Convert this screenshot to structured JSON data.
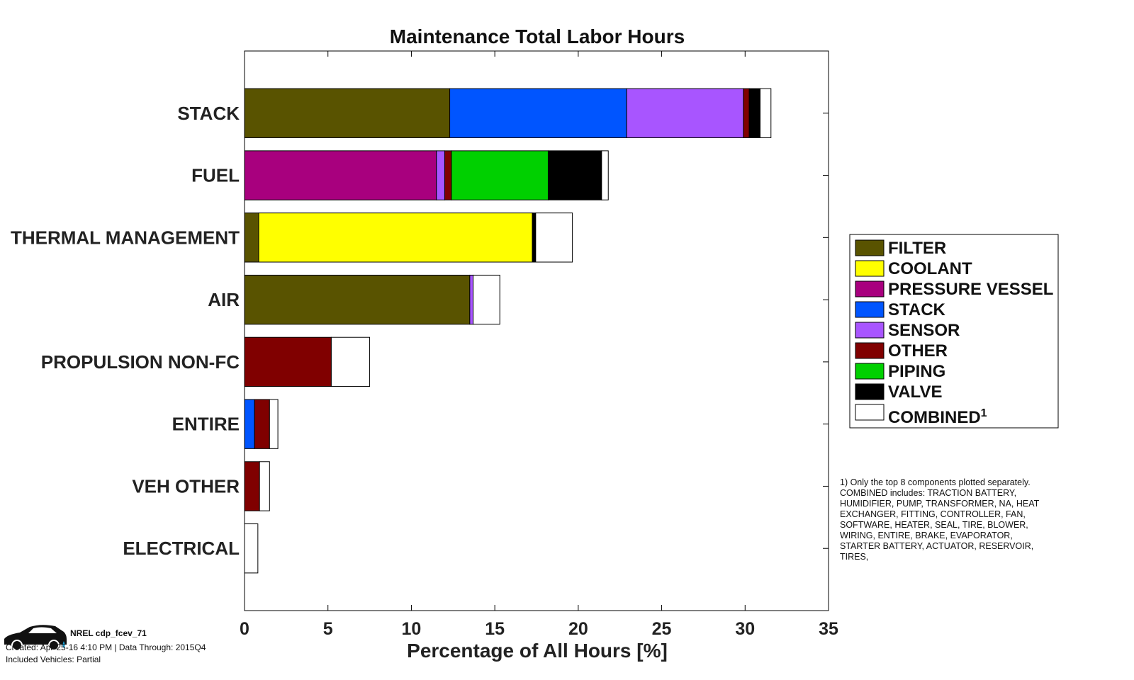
{
  "chart_data": {
    "type": "bar",
    "orientation": "horizontal",
    "stacked": true,
    "title": "Maintenance Total Labor Hours",
    "xlabel": "Percentage of All Hours [%]",
    "ylabel": "",
    "xlim": [
      0,
      35
    ],
    "xticks": [
      0,
      5,
      10,
      15,
      20,
      25,
      30,
      35
    ],
    "grid": false,
    "legend_position": "right",
    "categories": [
      "STACK",
      "FUEL",
      "THERMAL MANAGEMENT",
      "AIR",
      "PROPULSION NON-FC",
      "ENTIRE",
      "VEH OTHER",
      "ELECTRICAL"
    ],
    "series": [
      {
        "name": "FILTER",
        "color": "#595300",
        "values": [
          12.3,
          0,
          0.85,
          13.5,
          0,
          0,
          0,
          0
        ]
      },
      {
        "name": "COOLANT",
        "color": "#ffff00",
        "values": [
          0,
          0,
          16.4,
          0,
          0,
          0,
          0,
          0
        ]
      },
      {
        "name": "PRESSURE VESSEL",
        "color": "#a8007e",
        "values": [
          0,
          11.5,
          0,
          0,
          0,
          0,
          0,
          0
        ]
      },
      {
        "name": "STACK",
        "color": "#0055ff",
        "values": [
          10.6,
          0,
          0,
          0,
          0,
          0.6,
          0,
          0
        ]
      },
      {
        "name": "SENSOR",
        "color": "#a855ff",
        "values": [
          7.0,
          0.5,
          0,
          0.2,
          0,
          0,
          0,
          0
        ]
      },
      {
        "name": "OTHER",
        "color": "#800000",
        "values": [
          0.35,
          0.4,
          0,
          0,
          5.2,
          0.9,
          0.9,
          0
        ]
      },
      {
        "name": "PIPING",
        "color": "#00d000",
        "values": [
          0,
          5.8,
          0,
          0,
          0,
          0,
          0,
          0
        ]
      },
      {
        "name": "VALVE",
        "color": "#000000",
        "values": [
          0.65,
          3.2,
          0.2,
          0,
          0,
          0,
          0,
          0
        ]
      },
      {
        "name": "COMBINED",
        "color": "#ffffff",
        "values": [
          0.65,
          0.4,
          2.2,
          1.6,
          2.3,
          0.5,
          0.6,
          0.8
        ]
      }
    ],
    "legend_note_superscript": "1"
  },
  "footnote": {
    "lines": [
      "1) Only the top 8 components plotted separately.",
      "COMBINED includes: TRACTION BATTERY,",
      "HUMIDIFIER, PUMP, TRANSFORMER, NA, HEAT",
      "EXCHANGER, FITTING, CONTROLLER, FAN,",
      "SOFTWARE, HEATER, SEAL, TIRE, BLOWER,",
      "WIRING, ENTIRE, BRAKE, EVAPORATOR,",
      "STARTER BATTERY, ACTUATOR, RESERVOIR,",
      "TIRES,"
    ]
  },
  "credit": {
    "name": "NREL cdp_fcev_71",
    "line1": "Created: Apr-25-16  4:10 PM | Data Through: 2015Q4",
    "line2": "Included Vehicles: Partial"
  }
}
